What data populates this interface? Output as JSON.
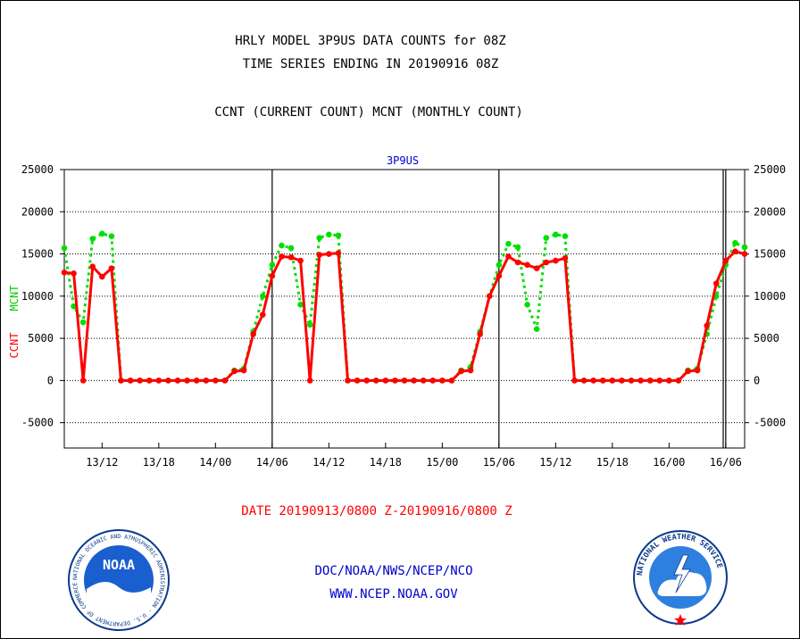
{
  "header": {
    "title_line1": "HRLY MODEL 3P9US DATA COUNTS for 08Z",
    "title_line2": "TIME SERIES ENDING IN 20190916 08Z",
    "subtitle": "CCNT (CURRENT COUNT) MCNT (MONTHLY COUNT)"
  },
  "footer": {
    "date_range": "DATE 20190913/0800 Z-20190916/0800 Z",
    "org_path": "DOC/NOAA/NWS/NCEP/NCO",
    "website": "WWW.NCEP.NOAA.GOV"
  },
  "logos": {
    "noaa_text": "NOAA",
    "noaa_ring_text": "NATIONAL OCEANIC AND ATMOSPHERIC ADMINISTRATION · U.S. DEPARTMENT OF COMMERCE",
    "nws_ring_text": "NATIONAL WEATHER SERVICE"
  },
  "colors": {
    "ccnt": "#ff0000",
    "mcnt": "#00e000",
    "title_blue": "#0000cc",
    "grid": "#000000"
  },
  "chart_data": {
    "type": "line",
    "title": "3P9US",
    "ylabel_left_ccnt": "CCNT",
    "ylabel_left_mcnt": "MCNT",
    "xlabel": "",
    "ylim": [
      -8000,
      25000
    ],
    "y_ticks": [
      25000,
      20000,
      15000,
      10000,
      5000,
      0,
      -5000
    ],
    "grid": "horizontal dotted at each y tick; solid vertical lines at day boundaries",
    "x_start": "13/08",
    "x_end": "16/08",
    "x_ticks": [
      "13/12",
      "13/18",
      "14/00",
      "14/06",
      "14/12",
      "14/18",
      "15/00",
      "15/06",
      "15/12",
      "15/18",
      "16/00",
      "16/06"
    ],
    "day_boundaries": [
      "14/06",
      "15/06",
      "16/06"
    ],
    "series": [
      {
        "name": "CCNT",
        "style": "solid",
        "values": [
          [
            "13/08",
            12800
          ],
          [
            "13/09",
            12700
          ],
          [
            "13/10",
            0
          ],
          [
            "13/11",
            13500
          ],
          [
            "13/12",
            12300
          ],
          [
            "13/13",
            13300
          ],
          [
            "13/14",
            0
          ],
          [
            "13/15",
            0
          ],
          [
            "13/16",
            0
          ],
          [
            "13/17",
            0
          ],
          [
            "13/18",
            0
          ],
          [
            "13/19",
            0
          ],
          [
            "13/20",
            0
          ],
          [
            "13/21",
            0
          ],
          [
            "13/22",
            0
          ],
          [
            "13/23",
            0
          ],
          [
            "14/00",
            0
          ],
          [
            "14/01",
            0
          ],
          [
            "14/02",
            1100
          ],
          [
            "14/03",
            1200
          ],
          [
            "14/04",
            5500
          ],
          [
            "14/05",
            7800
          ],
          [
            "14/06",
            12400
          ],
          [
            "14/07",
            14700
          ],
          [
            "14/08",
            14600
          ],
          [
            "14/09",
            14200
          ],
          [
            "14/10",
            0
          ],
          [
            "14/11",
            14900
          ],
          [
            "14/12",
            15000
          ],
          [
            "14/13",
            15100
          ],
          [
            "14/14",
            0
          ],
          [
            "14/15",
            0
          ],
          [
            "14/16",
            0
          ],
          [
            "14/17",
            0
          ],
          [
            "14/18",
            0
          ],
          [
            "14/19",
            0
          ],
          [
            "14/20",
            0
          ],
          [
            "14/21",
            0
          ],
          [
            "14/22",
            0
          ],
          [
            "14/23",
            0
          ],
          [
            "15/00",
            0
          ],
          [
            "15/01",
            0
          ],
          [
            "15/02",
            1100
          ],
          [
            "15/03",
            1200
          ],
          [
            "15/04",
            5500
          ],
          [
            "15/05",
            10000
          ],
          [
            "15/06",
            12400
          ],
          [
            "15/07",
            14700
          ],
          [
            "15/08",
            14000
          ],
          [
            "15/09",
            13700
          ],
          [
            "15/10",
            13300
          ],
          [
            "15/11",
            14000
          ],
          [
            "15/12",
            14200
          ],
          [
            "15/13",
            14500
          ],
          [
            "15/14",
            0
          ],
          [
            "15/15",
            0
          ],
          [
            "15/16",
            0
          ],
          [
            "15/17",
            0
          ],
          [
            "15/18",
            0
          ],
          [
            "15/19",
            0
          ],
          [
            "15/20",
            0
          ],
          [
            "15/21",
            0
          ],
          [
            "15/22",
            0
          ],
          [
            "15/23",
            0
          ],
          [
            "16/00",
            0
          ],
          [
            "16/01",
            0
          ],
          [
            "16/02",
            1100
          ],
          [
            "16/03",
            1200
          ],
          [
            "16/04",
            6500
          ],
          [
            "16/05",
            11500
          ],
          [
            "16/06",
            14200
          ],
          [
            "16/07",
            15300
          ],
          [
            "16/08",
            15000
          ]
        ]
      },
      {
        "name": "MCNT",
        "style": "dotted",
        "values": [
          [
            "13/08",
            15700
          ],
          [
            "13/09",
            8800
          ],
          [
            "13/10",
            6900
          ],
          [
            "13/11",
            16800
          ],
          [
            "13/12",
            17400
          ],
          [
            "13/13",
            17100
          ],
          [
            "13/14",
            0
          ],
          [
            "13/15",
            0
          ],
          [
            "13/16",
            0
          ],
          [
            "13/17",
            0
          ],
          [
            "13/18",
            0
          ],
          [
            "13/19",
            0
          ],
          [
            "13/20",
            0
          ],
          [
            "13/21",
            0
          ],
          [
            "13/22",
            0
          ],
          [
            "13/23",
            0
          ],
          [
            "14/00",
            0
          ],
          [
            "14/01",
            0
          ],
          [
            "14/02",
            1200
          ],
          [
            "14/03",
            1400
          ],
          [
            "14/04",
            5800
          ],
          [
            "14/05",
            10000
          ],
          [
            "14/06",
            13700
          ],
          [
            "14/07",
            16000
          ],
          [
            "14/08",
            15700
          ],
          [
            "14/09",
            9000
          ],
          [
            "14/10",
            6600
          ],
          [
            "14/11",
            16900
          ],
          [
            "14/12",
            17300
          ],
          [
            "14/13",
            17200
          ],
          [
            "14/14",
            0
          ],
          [
            "14/15",
            0
          ],
          [
            "14/16",
            0
          ],
          [
            "14/17",
            0
          ],
          [
            "14/18",
            0
          ],
          [
            "14/19",
            0
          ],
          [
            "14/20",
            0
          ],
          [
            "14/21",
            0
          ],
          [
            "14/22",
            0
          ],
          [
            "14/23",
            0
          ],
          [
            "15/00",
            0
          ],
          [
            "15/01",
            0
          ],
          [
            "15/02",
            1200
          ],
          [
            "15/03",
            1600
          ],
          [
            "15/04",
            5800
          ],
          [
            "15/05",
            10000
          ],
          [
            "15/06",
            13700
          ],
          [
            "15/07",
            16200
          ],
          [
            "15/08",
            15800
          ],
          [
            "15/09",
            9000
          ],
          [
            "15/10",
            6100
          ],
          [
            "15/11",
            16900
          ],
          [
            "15/12",
            17300
          ],
          [
            "15/13",
            17100
          ],
          [
            "15/14",
            0
          ],
          [
            "15/15",
            0
          ],
          [
            "15/16",
            0
          ],
          [
            "15/17",
            0
          ],
          [
            "15/18",
            0
          ],
          [
            "15/19",
            0
          ],
          [
            "15/20",
            0
          ],
          [
            "15/21",
            0
          ],
          [
            "15/22",
            0
          ],
          [
            "15/23",
            0
          ],
          [
            "16/00",
            0
          ],
          [
            "16/01",
            0
          ],
          [
            "16/02",
            1200
          ],
          [
            "16/03",
            1400
          ],
          [
            "16/04",
            5500
          ],
          [
            "16/05",
            10000
          ],
          [
            "16/06",
            13700
          ],
          [
            "16/07",
            16300
          ],
          [
            "16/08",
            15800
          ]
        ]
      }
    ]
  }
}
